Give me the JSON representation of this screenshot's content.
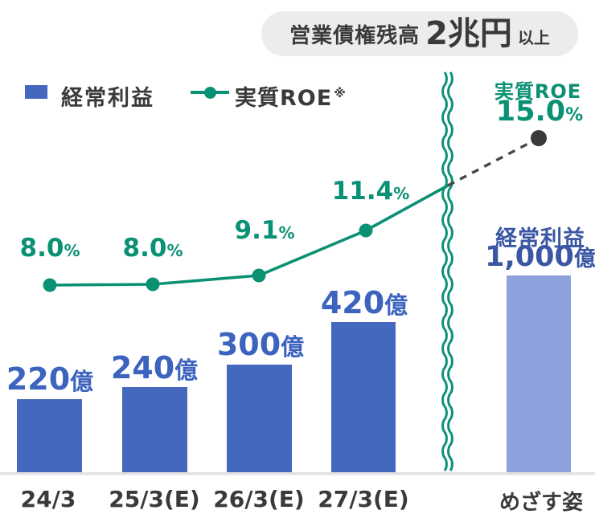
{
  "badge": {
    "prefix": "営業債権残高",
    "value": "2兆円",
    "suffix": "以上"
  },
  "legend": {
    "bar_label": "経常利益",
    "line_label": "実質ROE",
    "note": "※"
  },
  "chart": {
    "bar_labels": [
      {
        "num": "220",
        "unit": "億"
      },
      {
        "num": "240",
        "unit": "億"
      },
      {
        "num": "300",
        "unit": "億"
      },
      {
        "num": "420",
        "unit": "億"
      }
    ],
    "roe_labels": [
      {
        "num": "8.0",
        "unit": "%"
      },
      {
        "num": "8.0",
        "unit": "%"
      },
      {
        "num": "9.1",
        "unit": "%"
      },
      {
        "num": "11.4",
        "unit": "%"
      }
    ],
    "x_labels": [
      "24/3",
      "25/3(E)",
      "26/3(E)",
      "27/3(E)",
      "めざす姿"
    ],
    "goal": {
      "roe_title": "実質ROE",
      "roe_num": "15.0",
      "roe_unit": "%",
      "profit_title": "経常利益",
      "profit_num": "1,000",
      "profit_unit": "億"
    }
  },
  "colors": {
    "bar_blue": "#4368bd",
    "bar_light_blue": "#8da2dd",
    "label_blue": "#3c63be",
    "navy": "#3a56a4",
    "green": "#0a9174",
    "dark_gray": "#3a3a3a",
    "dashed_line": "#474747",
    "badge_bg": "#ececec",
    "axis": "#e2e2e2"
  },
  "chart_data": {
    "type": "bar+line combo",
    "categories": [
      "24/3",
      "25/3(E)",
      "26/3(E)",
      "27/3(E)",
      "めざす姿"
    ],
    "series": [
      {
        "name": "経常利益",
        "type": "bar",
        "unit": "億円",
        "values": [
          220,
          240,
          300,
          420,
          1000
        ],
        "note": "final bar (1,000億, めざす姿) drawn in lighter blue beyond a broken-axis wavy divider"
      },
      {
        "name": "実質ROE",
        "type": "line",
        "unit": "%",
        "values": [
          8.0,
          8.0,
          9.1,
          11.4,
          15.0
        ],
        "note": "final point (15.0%) is a dark dot connected by a dashed gray line"
      }
    ],
    "title": "営業債権残高 2兆円以上",
    "xlabel": "",
    "ylabel": "",
    "grid": false,
    "legend_position": "top-left",
    "annotations": {
      "broken_axis_divider": "green double wavy vertical line between 27/3(E) and めざす姿"
    }
  }
}
